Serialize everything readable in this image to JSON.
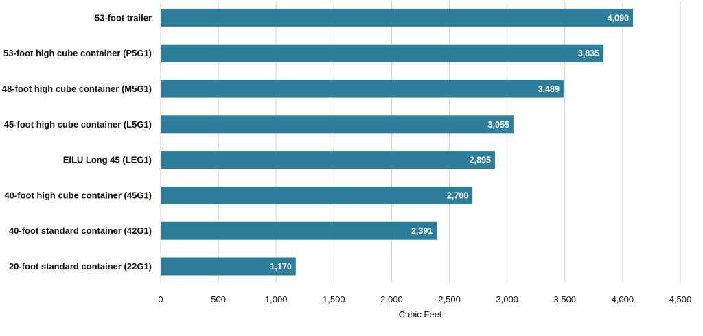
{
  "colors": {
    "bar": "#2d7e9b",
    "grid": "#d4d4d4",
    "text": "#111111",
    "value_text": "#ffffff"
  },
  "chart_data": {
    "type": "bar",
    "orientation": "horizontal",
    "title": "",
    "xlabel": "Cubic Feet",
    "ylabel": "",
    "xlim": [
      0,
      4500
    ],
    "x_ticks": [
      0,
      500,
      1000,
      1500,
      2000,
      2500,
      3000,
      3500,
      4000,
      4500
    ],
    "x_tick_labels": [
      "0",
      "500",
      "1,000",
      "1,500",
      "2,000",
      "2,500",
      "3,000",
      "3,500",
      "4,000",
      "4,500"
    ],
    "grid": true,
    "categories": [
      "53-foot trailer",
      "53-foot high cube container (P5G1)",
      "48-foot high cube container (M5G1)",
      "45-foot high cube container (L5G1)",
      "EILU Long 45 (LEG1)",
      "40-foot high cube container (45G1)",
      "40-foot standard container (42G1)",
      "20-foot standard container (22G1)"
    ],
    "values": [
      4090,
      3835,
      3489,
      3055,
      2895,
      2700,
      2391,
      1170
    ],
    "value_labels": [
      "4,090",
      "3,835",
      "3,489",
      "3,055",
      "2,895",
      "2,700",
      "2,391",
      "1,170"
    ]
  }
}
